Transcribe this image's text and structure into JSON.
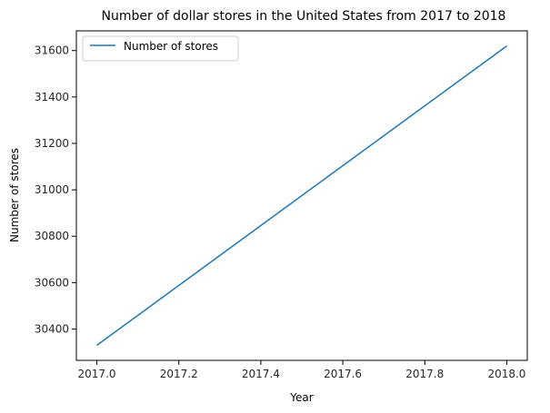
{
  "chart_data": {
    "type": "line",
    "title": "Number of dollar stores in the United States from 2017 to 2018",
    "xlabel": "Year",
    "ylabel": "Number of stores",
    "x": [
      2017.0,
      2018.0
    ],
    "series": [
      {
        "name": "Number of stores",
        "values": [
          30330,
          31620
        ],
        "color": "#1f77b4"
      }
    ],
    "xlim": [
      2016.95,
      2018.05
    ],
    "ylim": [
      30265,
      31685
    ],
    "xticks": [
      "2017.0",
      "2017.2",
      "2017.4",
      "2017.6",
      "2017.8",
      "2018.0"
    ],
    "yticks": [
      "30400",
      "30600",
      "30800",
      "31000",
      "31200",
      "31400",
      "31600"
    ],
    "grid": false,
    "legend": "top-left"
  }
}
